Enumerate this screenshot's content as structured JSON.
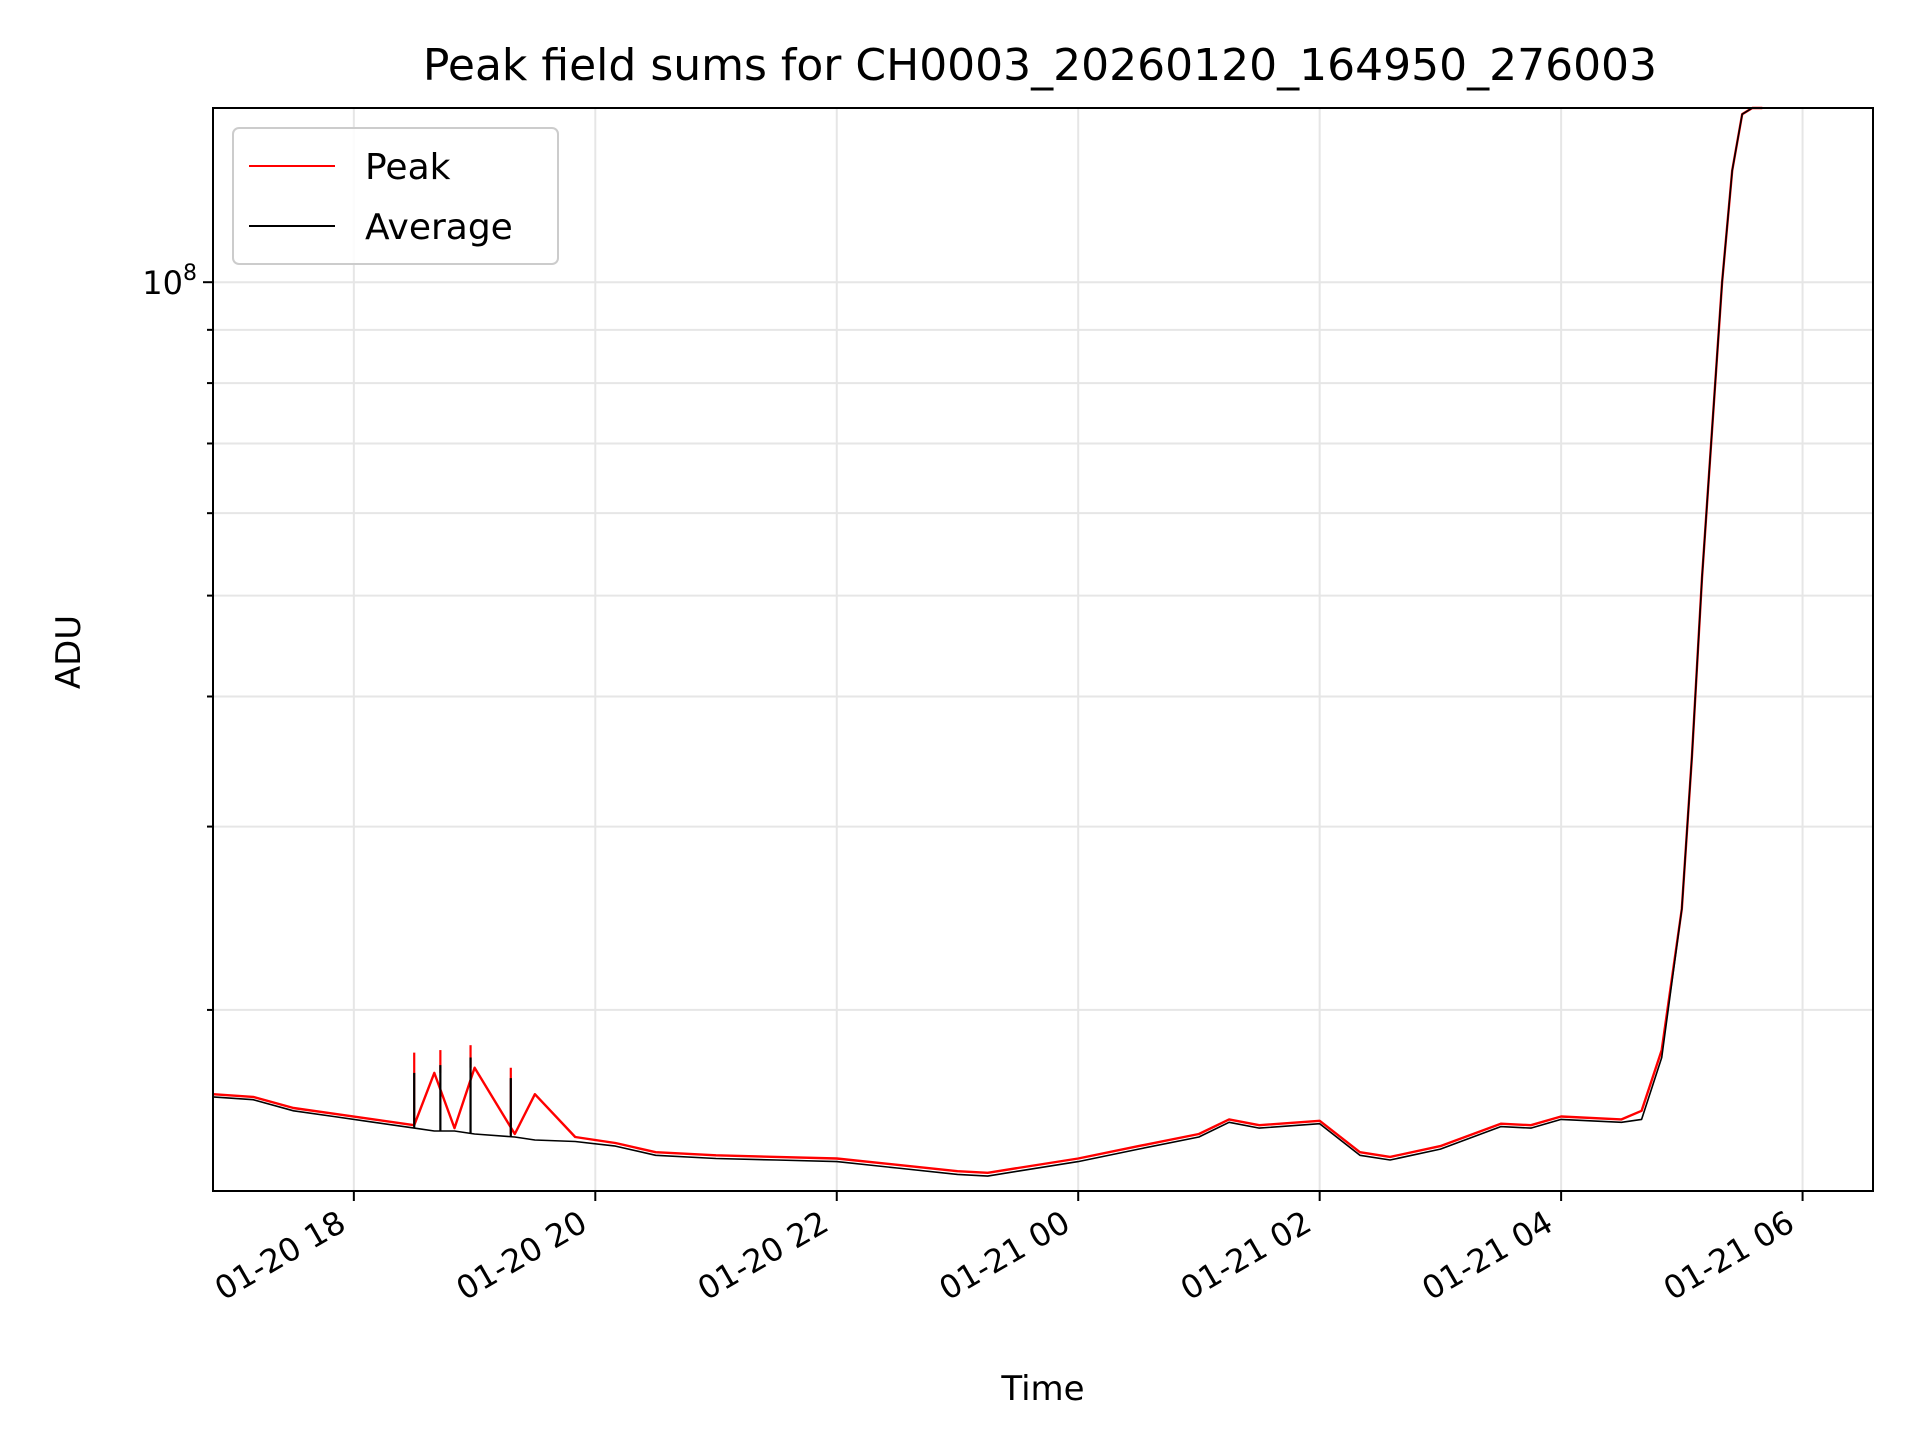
{
  "chart_data": {
    "type": "line",
    "title": "Peak field sums for CH0003_20260120_164950_276003",
    "xlabel": "Time",
    "ylabel": "ADU",
    "x_scale": "time",
    "y_scale": "log",
    "xlim": [
      "2026-01-20 16:50",
      "2026-01-21 06:35"
    ],
    "ylim": [
      13400000,
      147000000
    ],
    "x_ticks": [
      {
        "value": "2026-01-20 18:00",
        "label": "01-20 18"
      },
      {
        "value": "2026-01-20 20:00",
        "label": "01-20 20"
      },
      {
        "value": "2026-01-20 22:00",
        "label": "01-20 22"
      },
      {
        "value": "2026-01-21 00:00",
        "label": "01-21 00"
      },
      {
        "value": "2026-01-21 02:00",
        "label": "01-21 02"
      },
      {
        "value": "2026-01-21 04:00",
        "label": "01-21 04"
      },
      {
        "value": "2026-01-21 06:00",
        "label": "01-21 06"
      }
    ],
    "y_major_ticks": [
      {
        "value": 100000000,
        "base": "10",
        "exponent": "8"
      }
    ],
    "y_minor_ticks": [
      20000000,
      30000000,
      40000000,
      50000000,
      60000000,
      70000000,
      80000000,
      90000000
    ],
    "grid": true,
    "legend": {
      "position": "upper-left"
    },
    "series": [
      {
        "name": "Peak",
        "color": "#ff0000",
        "x": [
          "2026-01-20 16:50",
          "2026-01-20 17:10",
          "2026-01-20 17:30",
          "2026-01-20 17:50",
          "2026-01-20 18:10",
          "2026-01-20 18:30",
          "2026-01-20 18:40",
          "2026-01-20 18:50",
          "2026-01-20 19:00",
          "2026-01-20 19:20",
          "2026-01-20 19:30",
          "2026-01-20 19:50",
          "2026-01-20 20:10",
          "2026-01-20 20:30",
          "2026-01-20 21:00",
          "2026-01-20 21:30",
          "2026-01-20 22:00",
          "2026-01-20 22:30",
          "2026-01-20 23:00",
          "2026-01-20 23:15",
          "2026-01-20 23:30",
          "2026-01-21 00:00",
          "2026-01-21 00:30",
          "2026-01-21 01:00",
          "2026-01-21 01:15",
          "2026-01-21 01:30",
          "2026-01-21 02:00",
          "2026-01-21 02:20",
          "2026-01-21 02:35",
          "2026-01-21 03:00",
          "2026-01-21 03:30",
          "2026-01-21 03:45",
          "2026-01-21 04:00",
          "2026-01-21 04:30",
          "2026-01-21 04:40",
          "2026-01-21 04:50",
          "2026-01-21 05:00",
          "2026-01-21 05:05",
          "2026-01-21 05:10",
          "2026-01-21 05:15",
          "2026-01-21 05:20",
          "2026-01-21 05:25",
          "2026-01-21 05:30",
          "2026-01-21 05:35",
          "2026-01-21 05:40"
        ],
        "y": [
          16600000,
          16500000,
          16100000,
          15900000,
          15700000,
          15500000,
          17400000,
          15400000,
          17600000,
          15200000,
          16600000,
          15100000,
          14900000,
          14600000,
          14500000,
          14450000,
          14400000,
          14200000,
          14000000,
          13950000,
          14100000,
          14400000,
          14800000,
          15200000,
          15700000,
          15500000,
          15650000,
          14600000,
          14450000,
          14800000,
          15550000,
          15500000,
          15800000,
          15700000,
          16000000,
          18300000,
          25000000,
          35000000,
          52000000,
          72000000,
          100000000,
          128000000,
          145000000,
          147000000,
          147000000
        ],
        "spikes": [
          {
            "x": "2026-01-20 18:30",
            "y": 18200000
          },
          {
            "x": "2026-01-20 18:43",
            "y": 18300000
          },
          {
            "x": "2026-01-20 18:58",
            "y": 18500000
          },
          {
            "x": "2026-01-20 19:18",
            "y": 17600000
          }
        ]
      },
      {
        "name": "Average",
        "color": "#000000",
        "x": [
          "2026-01-20 16:50",
          "2026-01-20 17:10",
          "2026-01-20 17:30",
          "2026-01-20 17:50",
          "2026-01-20 18:10",
          "2026-01-20 18:30",
          "2026-01-20 18:40",
          "2026-01-20 18:50",
          "2026-01-20 19:00",
          "2026-01-20 19:20",
          "2026-01-20 19:30",
          "2026-01-20 19:50",
          "2026-01-20 20:10",
          "2026-01-20 20:30",
          "2026-01-20 21:00",
          "2026-01-20 21:30",
          "2026-01-20 22:00",
          "2026-01-20 22:30",
          "2026-01-20 23:00",
          "2026-01-20 23:15",
          "2026-01-20 23:30",
          "2026-01-21 00:00",
          "2026-01-21 00:30",
          "2026-01-21 01:00",
          "2026-01-21 01:15",
          "2026-01-21 01:30",
          "2026-01-21 02:00",
          "2026-01-21 02:20",
          "2026-01-21 02:35",
          "2026-01-21 03:00",
          "2026-01-21 03:30",
          "2026-01-21 03:45",
          "2026-01-21 04:00",
          "2026-01-21 04:30",
          "2026-01-21 04:40",
          "2026-01-21 04:50",
          "2026-01-21 05:00",
          "2026-01-21 05:05",
          "2026-01-21 05:10",
          "2026-01-21 05:15",
          "2026-01-21 05:20",
          "2026-01-21 05:25",
          "2026-01-21 05:30",
          "2026-01-21 05:35",
          "2026-01-21 05:40"
        ],
        "y": [
          16500000,
          16400000,
          16000000,
          15800000,
          15600000,
          15400000,
          15300000,
          15300000,
          15200000,
          15100000,
          15000000,
          14950000,
          14800000,
          14500000,
          14400000,
          14350000,
          14300000,
          14100000,
          13900000,
          13850000,
          14000000,
          14300000,
          14700000,
          15100000,
          15600000,
          15400000,
          15550000,
          14500000,
          14350000,
          14700000,
          15450000,
          15400000,
          15700000,
          15600000,
          15700000,
          18000000,
          25000000,
          35000000,
          52000000,
          72000000,
          100000000,
          128000000,
          145000000,
          147000000,
          147000000
        ],
        "spikes": [
          {
            "x": "2026-01-20 18:30",
            "y": 17400000
          },
          {
            "x": "2026-01-20 18:43",
            "y": 17700000
          },
          {
            "x": "2026-01-20 18:58",
            "y": 18000000
          },
          {
            "x": "2026-01-20 19:18",
            "y": 17200000
          }
        ]
      }
    ]
  }
}
